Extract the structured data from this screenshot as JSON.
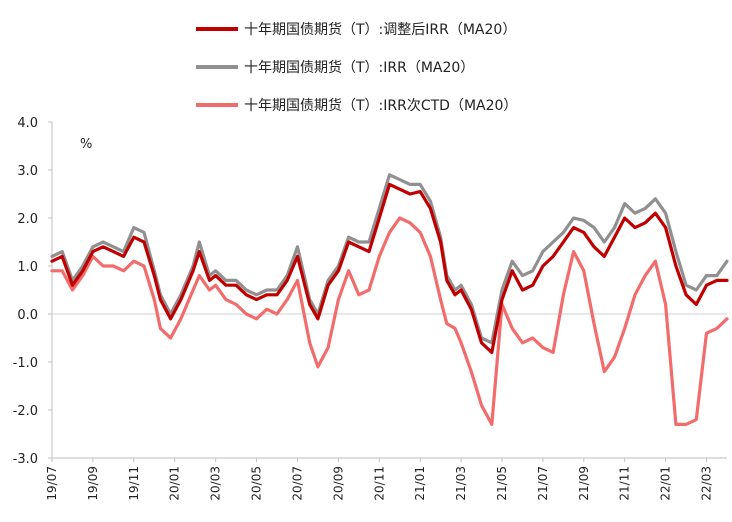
{
  "chart_data": {
    "type": "line",
    "title": "",
    "unit": "%",
    "ylim": [
      -3.0,
      4.0
    ],
    "yticks": [
      "4.0",
      "3.0",
      "2.0",
      "1.0",
      "0.0",
      "-1.0",
      "-2.0",
      "-3.0"
    ],
    "xlim": [
      0,
      33
    ],
    "x_ticks": [
      "19/07",
      "19/09",
      "19/11",
      "20/01",
      "20/03",
      "20/05",
      "20/07",
      "20/09",
      "20/11",
      "21/01",
      "21/03",
      "21/05",
      "21/07",
      "21/09",
      "21/11",
      "22/01",
      "22/03"
    ],
    "series": [
      {
        "name": "十年期国债期货（T）:调整后IRR（MA20）",
        "color": "#c00000",
        "x": [
          0,
          0.5,
          1,
          1.5,
          2,
          2.5,
          3,
          3.5,
          4,
          4.5,
          5,
          5.3,
          5.8,
          6.3,
          6.9,
          7.2,
          7.7,
          8,
          8.5,
          9,
          9.5,
          10,
          10.5,
          11,
          11.5,
          12,
          12.6,
          13,
          13.5,
          14,
          14.5,
          15,
          15.5,
          16,
          16.5,
          17,
          17.5,
          18,
          18.5,
          19,
          19.3,
          19.7,
          20,
          20.5,
          21,
          21.5,
          22,
          22.5,
          23,
          23.5,
          24,
          24.5,
          25,
          25.5,
          26,
          26.5,
          27,
          27.5,
          28,
          28.5,
          29,
          29.5,
          30,
          30.5,
          31,
          31.5,
          32,
          32.5,
          33
        ],
        "values": [
          1.1,
          1.2,
          0.6,
          0.9,
          1.3,
          1.4,
          1.3,
          1.2,
          1.6,
          1.5,
          0.8,
          0.3,
          -0.1,
          0.3,
          0.9,
          1.3,
          0.7,
          0.8,
          0.6,
          0.6,
          0.4,
          0.3,
          0.4,
          0.4,
          0.7,
          1.2,
          0.2,
          -0.1,
          0.6,
          0.9,
          1.5,
          1.4,
          1.3,
          2.0,
          2.7,
          2.6,
          2.5,
          2.55,
          2.2,
          1.5,
          0.7,
          0.4,
          0.5,
          0.1,
          -0.6,
          -0.8,
          0.3,
          0.9,
          0.5,
          0.6,
          1.0,
          1.2,
          1.5,
          1.8,
          1.7,
          1.4,
          1.2,
          1.6,
          2.0,
          1.8,
          1.9,
          2.1,
          1.8,
          1.0,
          0.4,
          0.2,
          0.6,
          0.7,
          0.7
        ]
      },
      {
        "name": "十年期国债期货（T）:IRR（MA20）",
        "color": "#909090",
        "x": [
          0,
          0.5,
          1,
          1.5,
          2,
          2.5,
          3,
          3.5,
          4,
          4.5,
          5,
          5.3,
          5.8,
          6.3,
          6.9,
          7.2,
          7.7,
          8,
          8.5,
          9,
          9.5,
          10,
          10.5,
          11,
          11.5,
          12,
          12.6,
          13,
          13.5,
          14,
          14.5,
          15,
          15.5,
          16,
          16.5,
          17,
          17.5,
          18,
          18.5,
          19,
          19.3,
          19.7,
          20,
          20.5,
          21,
          21.5,
          22,
          22.5,
          23,
          23.5,
          24,
          24.5,
          25,
          25.5,
          26,
          26.5,
          27,
          27.5,
          28,
          28.5,
          29,
          29.5,
          30,
          30.5,
          31,
          31.5,
          32,
          32.5,
          33
        ],
        "values": [
          1.2,
          1.3,
          0.7,
          1.0,
          1.4,
          1.5,
          1.4,
          1.3,
          1.8,
          1.7,
          0.9,
          0.4,
          0.0,
          0.4,
          1.0,
          1.5,
          0.8,
          0.9,
          0.7,
          0.7,
          0.5,
          0.4,
          0.5,
          0.5,
          0.8,
          1.4,
          0.3,
          0.0,
          0.7,
          1.0,
          1.6,
          1.5,
          1.5,
          2.2,
          2.9,
          2.8,
          2.7,
          2.7,
          2.35,
          1.6,
          0.8,
          0.5,
          0.6,
          0.2,
          -0.5,
          -0.6,
          0.5,
          1.1,
          0.8,
          0.9,
          1.3,
          1.5,
          1.7,
          2.0,
          1.95,
          1.8,
          1.5,
          1.8,
          2.3,
          2.1,
          2.2,
          2.4,
          2.1,
          1.3,
          0.6,
          0.5,
          0.8,
          0.8,
          1.1
        ]
      },
      {
        "name": "十年期国债期货（T）:IRR次CTD（MA20）",
        "color": "#f26c6c",
        "x": [
          0,
          0.5,
          1,
          1.5,
          2,
          2.5,
          3,
          3.5,
          4,
          4.5,
          5,
          5.3,
          5.8,
          6.3,
          6.9,
          7.2,
          7.7,
          8,
          8.5,
          9,
          9.5,
          10,
          10.5,
          11,
          11.5,
          12,
          12.6,
          13,
          13.5,
          14,
          14.5,
          15,
          15.5,
          16,
          16.5,
          17,
          17.5,
          18,
          18.5,
          19,
          19.3,
          19.7,
          20,
          20.5,
          21,
          21.5,
          22,
          22.5,
          23,
          23.5,
          24,
          24.5,
          25,
          25.5,
          26,
          26.5,
          27,
          27.5,
          28,
          28.5,
          29,
          29.5,
          30,
          30.5,
          31,
          31.5,
          32,
          32.5,
          33
        ],
        "values": [
          0.9,
          0.9,
          0.5,
          0.8,
          1.2,
          1.0,
          1.0,
          0.9,
          1.1,
          1.0,
          0.3,
          -0.3,
          -0.5,
          -0.1,
          0.5,
          0.8,
          0.5,
          0.6,
          0.3,
          0.2,
          0.0,
          -0.1,
          0.1,
          0.0,
          0.3,
          0.7,
          -0.6,
          -1.1,
          -0.7,
          0.3,
          0.9,
          0.4,
          0.5,
          1.2,
          1.7,
          2.0,
          1.9,
          1.7,
          1.2,
          0.3,
          -0.2,
          -0.3,
          -0.6,
          -1.2,
          -1.9,
          -2.3,
          0.2,
          -0.3,
          -0.6,
          -0.5,
          -0.7,
          -0.8,
          0.4,
          1.3,
          0.9,
          -0.2,
          -1.2,
          -0.9,
          -0.3,
          0.4,
          0.8,
          1.1,
          0.2,
          -2.3,
          -2.3,
          -2.2,
          -0.4,
          -0.3,
          -0.1
        ]
      }
    ]
  }
}
